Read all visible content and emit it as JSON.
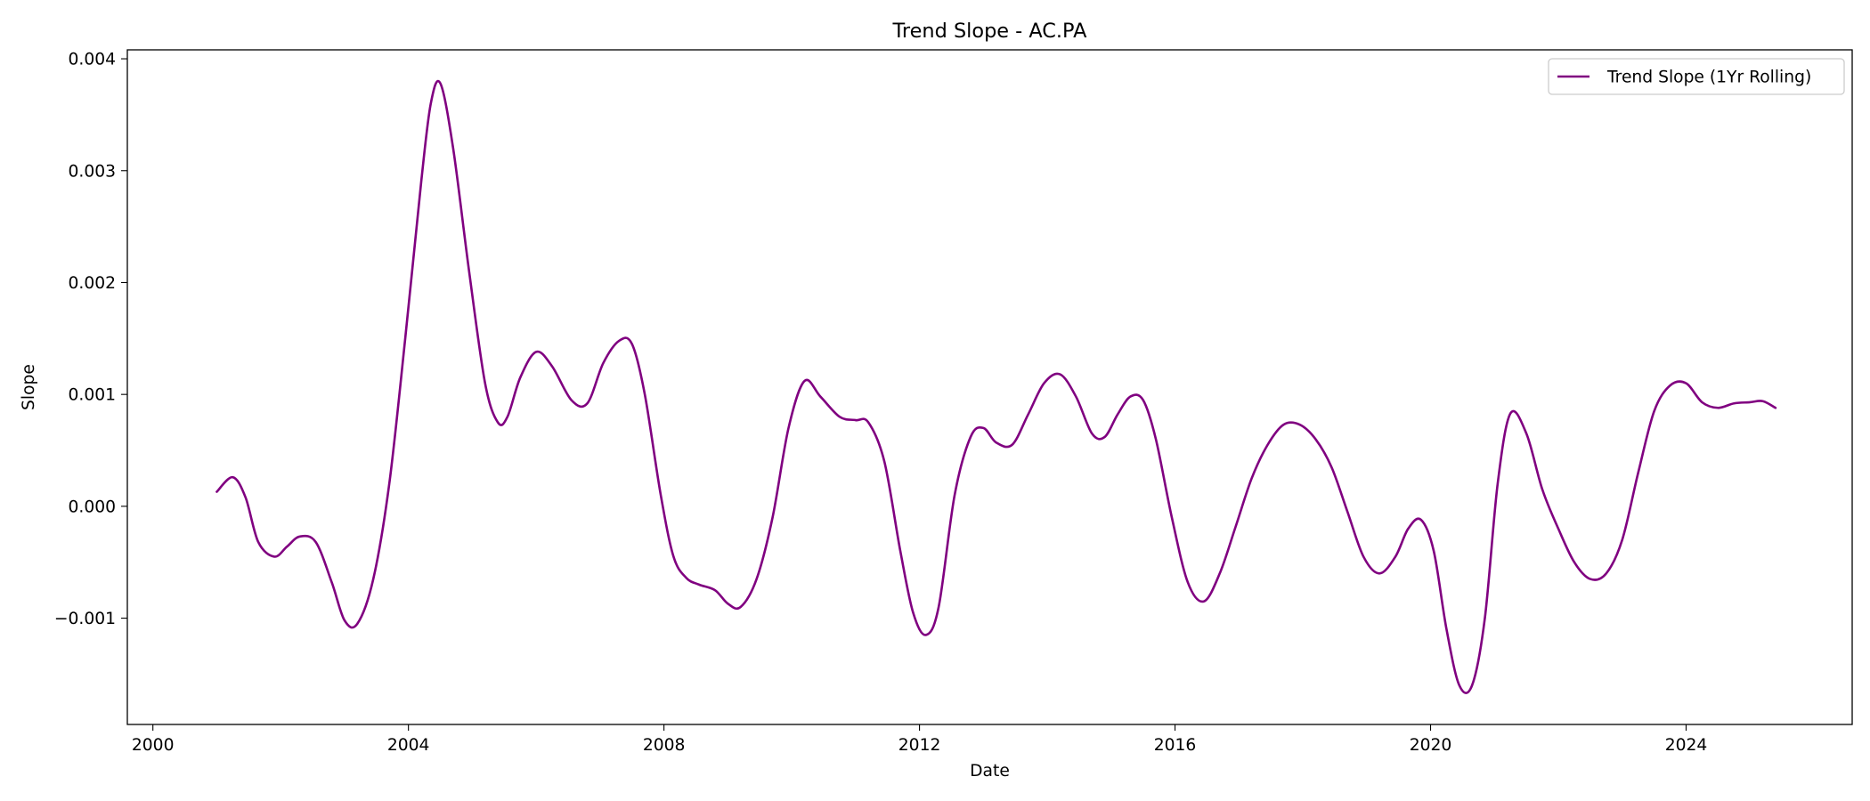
{
  "chart_data": {
    "type": "line",
    "title": "Trend Slope - AC.PA",
    "xlabel": "Date",
    "ylabel": "Slope",
    "xlim": [
      1999.6,
      2026.6
    ],
    "ylim": [
      -0.00195,
      0.00408
    ],
    "x_ticks": [
      2000,
      2004,
      2008,
      2012,
      2016,
      2020,
      2024
    ],
    "x_tick_labels": [
      "2000",
      "2004",
      "2008",
      "2012",
      "2016",
      "2020",
      "2024"
    ],
    "y_ticks": [
      -0.001,
      0.0,
      0.001,
      0.002,
      0.003,
      0.004
    ],
    "y_tick_labels": [
      "−0.001",
      "0.000",
      "0.001",
      "0.002",
      "0.003",
      "0.004"
    ],
    "grid": false,
    "legend_position": "top-right",
    "series": [
      {
        "name": "Trend Slope (1Yr Rolling)",
        "color": "#800080",
        "x": [
          2001.0,
          2001.25,
          2001.45,
          2001.65,
          2001.9,
          2002.1,
          2002.3,
          2002.55,
          2002.8,
          2003.0,
          2003.2,
          2003.45,
          2003.7,
          2003.95,
          2004.2,
          2004.35,
          2004.5,
          2004.7,
          2004.95,
          2005.2,
          2005.4,
          2005.55,
          2005.75,
          2006.0,
          2006.25,
          2006.55,
          2006.8,
          2007.05,
          2007.3,
          2007.5,
          2007.7,
          2007.95,
          2008.15,
          2008.35,
          2008.55,
          2008.8,
          2009.0,
          2009.2,
          2009.45,
          2009.7,
          2009.95,
          2010.2,
          2010.45,
          2010.75,
          2011.0,
          2011.2,
          2011.45,
          2011.7,
          2011.9,
          2012.1,
          2012.3,
          2012.55,
          2012.8,
          2013.0,
          2013.2,
          2013.45,
          2013.7,
          2013.95,
          2014.2,
          2014.45,
          2014.7,
          2014.9,
          2015.1,
          2015.3,
          2015.5,
          2015.7,
          2015.95,
          2016.2,
          2016.45,
          2016.7,
          2016.95,
          2017.2,
          2017.45,
          2017.7,
          2017.95,
          2018.2,
          2018.45,
          2018.7,
          2018.95,
          2019.2,
          2019.45,
          2019.65,
          2019.85,
          2020.05,
          2020.25,
          2020.45,
          2020.65,
          2020.85,
          2021.05,
          2021.25,
          2021.5,
          2021.75,
          2022.0,
          2022.25,
          2022.5,
          2022.75,
          2023.0,
          2023.25,
          2023.5,
          2023.75,
          2024.0,
          2024.25,
          2024.5,
          2024.75,
          2025.0,
          2025.2,
          2025.4
        ],
        "values": [
          0.00013,
          0.00026,
          8e-05,
          -0.00032,
          -0.00045,
          -0.00036,
          -0.00027,
          -0.00032,
          -0.00068,
          -0.00102,
          -0.00105,
          -0.00065,
          0.0002,
          0.0015,
          0.0029,
          0.0036,
          0.00378,
          0.0032,
          0.0021,
          0.0011,
          0.00075,
          0.0008,
          0.00115,
          0.00138,
          0.00125,
          0.00095,
          0.00092,
          0.00128,
          0.00148,
          0.00145,
          0.001,
          0.0001,
          -0.00045,
          -0.00064,
          -0.0007,
          -0.00075,
          -0.00087,
          -0.0009,
          -0.00065,
          -0.0001,
          0.0007,
          0.00112,
          0.00098,
          0.0008,
          0.00077,
          0.00075,
          0.0004,
          -0.0004,
          -0.00095,
          -0.00115,
          -0.0009,
          0.0001,
          0.00062,
          0.0007,
          0.00057,
          0.00055,
          0.00082,
          0.0011,
          0.00118,
          0.00098,
          0.00065,
          0.00062,
          0.00082,
          0.00098,
          0.00095,
          0.0006,
          -0.0001,
          -0.00068,
          -0.00085,
          -0.0006,
          -0.00018,
          0.00025,
          0.00055,
          0.00073,
          0.00073,
          0.0006,
          0.00035,
          -5e-05,
          -0.00045,
          -0.0006,
          -0.00045,
          -0.0002,
          -0.00012,
          -0.0004,
          -0.0011,
          -0.0016,
          -0.0016,
          -0.001,
          0.0002,
          0.00083,
          0.00065,
          0.00015,
          -0.0002,
          -0.0005,
          -0.00065,
          -0.0006,
          -0.0003,
          0.0003,
          0.00085,
          0.00108,
          0.0011,
          0.00093,
          0.00088,
          0.00092,
          0.00093,
          0.00094,
          0.00088
        ]
      }
    ]
  }
}
